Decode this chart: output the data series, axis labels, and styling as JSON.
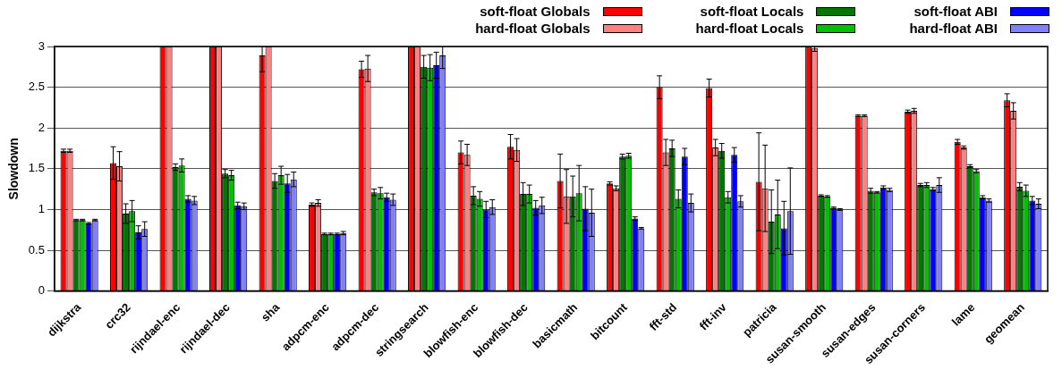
{
  "chart_data": {
    "type": "bar",
    "ylabel": "Slowdown",
    "categories": [
      "dijkstra",
      "crc32",
      "rijndael-enc",
      "rijndael-dec",
      "sha",
      "adpcm-enc",
      "adpcm-dec",
      "stringsearch",
      "blowfish-enc",
      "blowfish-dec",
      "basicmath",
      "bitcount",
      "fft-std",
      "fft-inv",
      "patricia",
      "susan-smooth",
      "susan-edges",
      "susan-corners",
      "lame",
      "geomean"
    ],
    "ylim": [
      0,
      3
    ],
    "yticks": [
      0,
      0.5,
      1,
      1.5,
      2,
      2.5,
      3
    ],
    "grid": "y",
    "legend": "top right",
    "series": [
      {
        "name": "soft-float Globals",
        "color": "#ff0000",
        "values": [
          1.72,
          1.57,
          3,
          3,
          2.89,
          1.06,
          2.72,
          3,
          1.7,
          1.77,
          1.35,
          1.32,
          2.5,
          2.49,
          1.34,
          3,
          2.15,
          2.2,
          1.83,
          2.34
        ],
        "errors": [
          0.02,
          0.2,
          null,
          null,
          0.2,
          0.02,
          0.1,
          null,
          0.14,
          0.15,
          0.33,
          0.02,
          0.14,
          0.11,
          0.6,
          null,
          0.01,
          0.02,
          0.03,
          0.08
        ]
      },
      {
        "name": "hard-float Globals",
        "color": "#ff8080",
        "values": [
          1.72,
          1.53,
          3,
          3,
          3,
          1.08,
          2.73,
          3,
          1.67,
          1.73,
          1.16,
          1.26,
          1.7,
          1.76,
          1.26,
          2.98,
          2.15,
          2.21,
          1.76,
          2.21
        ],
        "errors": [
          0.02,
          0.18,
          null,
          null,
          null,
          0.04,
          0.16,
          null,
          0.13,
          0.14,
          0.33,
          0.03,
          0.16,
          0.1,
          0.53,
          0.04,
          0.01,
          0.03,
          0.02,
          0.1
        ]
      },
      {
        "name": "soft-float Locals",
        "color": "#007800",
        "values": [
          0.87,
          0.95,
          1.52,
          1.44,
          1.35,
          0.7,
          1.21,
          2.75,
          1.17,
          1.19,
          1.16,
          1.65,
          1.75,
          1.72,
          0.85,
          1.17,
          1.23,
          1.3,
          1.53,
          1.28
        ],
        "errors": [
          0.01,
          0.12,
          0.04,
          0.05,
          0.09,
          0.01,
          0.04,
          0.14,
          0.11,
          0.14,
          0.25,
          0.03,
          0.1,
          0.09,
          0.39,
          0.01,
          0.03,
          0.02,
          0.02,
          0.05
        ]
      },
      {
        "name": "hard-float Locals",
        "color": "#00c000",
        "values": [
          0.87,
          0.98,
          1.54,
          1.42,
          1.42,
          0.7,
          1.2,
          2.74,
          1.13,
          1.19,
          1.2,
          1.66,
          1.13,
          1.15,
          0.94,
          1.16,
          1.21,
          1.3,
          1.47,
          1.23
        ],
        "errors": [
          0.01,
          0.13,
          0.08,
          0.06,
          0.11,
          0.01,
          0.07,
          0.16,
          0.09,
          0.11,
          0.34,
          0.03,
          0.11,
          0.07,
          0.42,
          0.01,
          0.01,
          0.03,
          0.02,
          0.07
        ]
      },
      {
        "name": "soft-float ABI",
        "color": "#0000ff",
        "values": [
          0.83,
          0.72,
          1.13,
          1.05,
          1.32,
          0.7,
          1.15,
          2.77,
          1,
          1.02,
          1.01,
          0.89,
          1.65,
          1.67,
          0.77,
          1.02,
          1.27,
          1.25,
          1.15,
          1.11
        ],
        "errors": [
          0.01,
          0.08,
          0.04,
          0.04,
          0.11,
          0.01,
          0.05,
          0.16,
          0.1,
          0.09,
          0.27,
          0.02,
          0.1,
          0.09,
          0.33,
          0.01,
          0.02,
          0.02,
          0.02,
          0.05
        ]
      },
      {
        "name": "hard-float ABI",
        "color": "#8080ff",
        "values": [
          0.87,
          0.76,
          1.11,
          1.04,
          1.37,
          0.71,
          1.12,
          2.89,
          1.03,
          1.05,
          0.96,
          0.77,
          1.08,
          1.1,
          0.98,
          1,
          1.24,
          1.3,
          1.11,
          1.07
        ],
        "errors": [
          0.01,
          0.09,
          0.05,
          0.04,
          0.09,
          0.02,
          0.07,
          0.16,
          0.09,
          0.1,
          0.29,
          0.01,
          0.11,
          0.07,
          0.53,
          0.01,
          0.02,
          0.09,
          0.02,
          0.06
        ]
      }
    ]
  }
}
